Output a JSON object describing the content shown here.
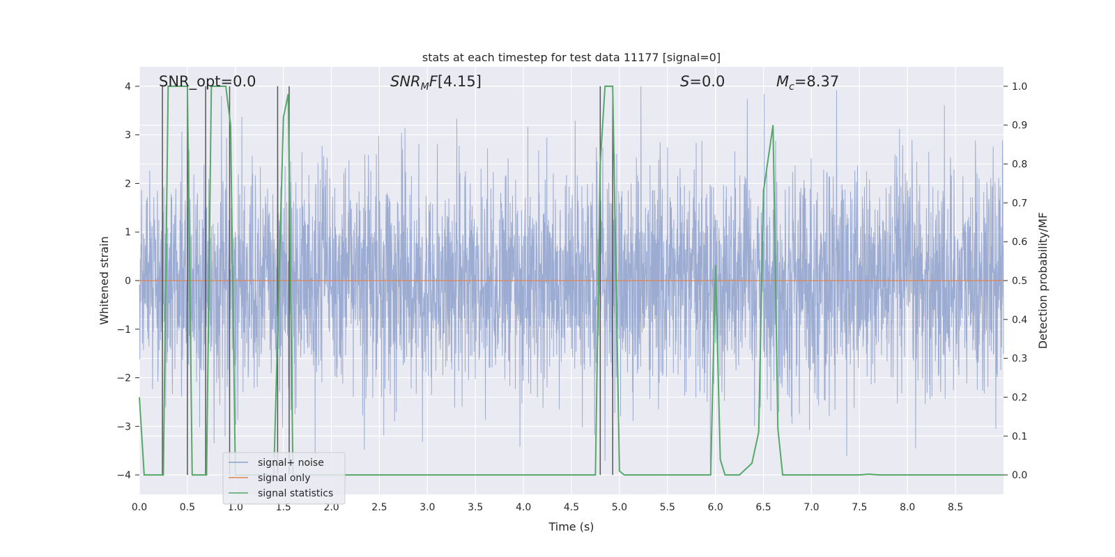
{
  "chart_data": {
    "type": "line",
    "title": "stats at each timestep for test data 11177 [signal=0]",
    "xlabel": "Time (s)",
    "ylabel_left": "Whitened strain",
    "ylabel_right": "Detection probability/MF",
    "xlim": [
      0.0,
      9.0
    ],
    "ylim_left": [
      -4.4,
      4.4
    ],
    "ylim_right": [
      -0.05,
      1.05
    ],
    "grid": true,
    "legend_position": "lower-left",
    "xticks": [
      "0.0",
      "0.5",
      "1.0",
      "1.5",
      "2.0",
      "2.5",
      "3.0",
      "3.5",
      "4.0",
      "4.5",
      "5.0",
      "5.5",
      "6.0",
      "6.5",
      "7.0",
      "7.5",
      "8.0",
      "8.5"
    ],
    "yticks_left": [
      "4",
      "3",
      "2",
      "1",
      "0",
      "−1",
      "−2",
      "−3",
      "−4"
    ],
    "yticks_right": [
      "1.0",
      "0.9",
      "0.8",
      "0.7",
      "0.6",
      "0.5",
      "0.4",
      "0.3",
      "0.2",
      "0.1",
      "0.0"
    ],
    "annotations": {
      "snr_opt": "SNR_opt=0.0",
      "snr_mf": "[4.15]",
      "s": "=0.0",
      "mc": "=8.37"
    },
    "series": [
      {
        "name": "signal+ noise",
        "color": "#8da0cb",
        "description_kind": "noise",
        "envelope_left": 2.7,
        "range": [
          -3.8,
          4.0
        ]
      },
      {
        "name": "signal only",
        "color": "#dd8452",
        "x": [
          0.0,
          9.0
        ],
        "y": [
          0.0,
          0.0
        ]
      },
      {
        "name": "signal statistics",
        "color": "#55a868",
        "axis": "right",
        "x": [
          0.0,
          0.05,
          0.25,
          0.3,
          0.5,
          0.55,
          0.7,
          0.75,
          0.9,
          0.95,
          1.0,
          1.4,
          1.5,
          1.55,
          1.6,
          4.75,
          4.8,
          4.85,
          4.93,
          5.0,
          5.05,
          5.95,
          6.0,
          6.05,
          6.1,
          6.25,
          6.38,
          6.45,
          6.5,
          6.6,
          6.65,
          6.7,
          7.5,
          7.6,
          7.7,
          8.3,
          9.0
        ],
        "y": [
          0.2,
          0.0,
          0.0,
          1.0,
          1.0,
          0.0,
          0.0,
          1.0,
          1.0,
          0.9,
          0.0,
          0.0,
          0.92,
          0.98,
          0.0,
          0.0,
          0.8,
          1.0,
          1.0,
          0.01,
          0.0,
          0.0,
          0.54,
          0.04,
          0.0,
          0.0,
          0.03,
          0.11,
          0.73,
          0.9,
          0.12,
          0.0,
          0.0,
          0.002,
          0.0,
          0.0,
          0.0
        ]
      }
    ],
    "vertical_markers": [
      0.24,
      0.5,
      0.69,
      0.94,
      1.44,
      1.56,
      4.8,
      4.93
    ]
  }
}
